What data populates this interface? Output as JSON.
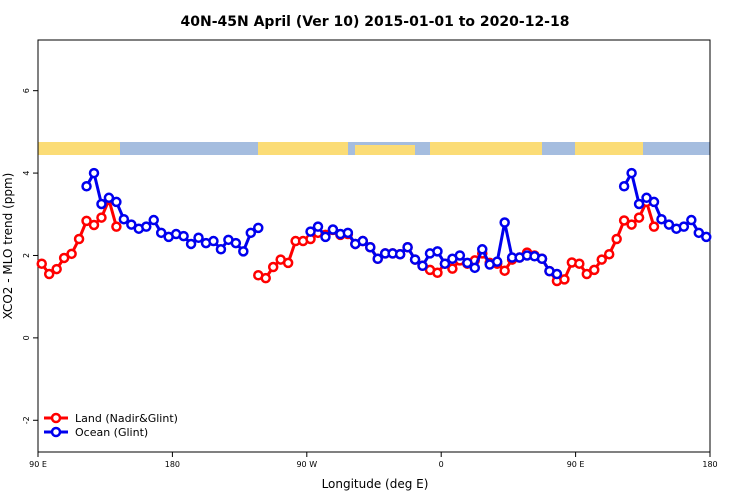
{
  "chart_data": {
    "type": "line",
    "title": "40N-45N April (Ver 10)   2015-01-01 to 2020-12-18",
    "xlabel": "Longitude (deg E)",
    "ylabel": "XCO2 - MLO trend (ppm)",
    "xlim": [
      90,
      540
    ],
    "xticks": [
      {
        "value": 90,
        "label": "90 E"
      },
      {
        "value": 180,
        "label": "180"
      },
      {
        "value": 270,
        "label": "90 W"
      },
      {
        "value": 360,
        "label": "0"
      },
      {
        "value": 450,
        "label": "90 E"
      },
      {
        "value": 540,
        "label": "180"
      }
    ],
    "ylim": [
      -2.77,
      7.23
    ],
    "yticks": [
      -2,
      0,
      2,
      4,
      6
    ],
    "legend": "bottom-left",
    "series": [
      {
        "name": "Land (Nadir&Glint)",
        "color": "#ff0000",
        "x": [
          92.5,
          97.5,
          102.5,
          107.5,
          112.5,
          117.5,
          122.5,
          127.5,
          132.5,
          137.5,
          142.5,
          null,
          237.5,
          242.5,
          247.5,
          252.5,
          257.5,
          262.5,
          267.5,
          272.5,
          277.5,
          282.5,
          287.5,
          292.5,
          297.5,
          302.5,
          307.5,
          312.5,
          317.5,
          322.5,
          327.5,
          332.5,
          337.5,
          342.5,
          347.5,
          352.5,
          357.5,
          362.5,
          367.5,
          372.5,
          377.5,
          382.5,
          387.5,
          392.5,
          397.5,
          402.5,
          407.5,
          412.5,
          417.5,
          422.5,
          427.5,
          432.5,
          437.5,
          442.5,
          447.5,
          452.5,
          457.5,
          462.5,
          467.5,
          472.5,
          477.5,
          482.5,
          487.5,
          492.5,
          497.5,
          502.5
        ],
        "values": [
          1.8,
          1.55,
          1.67,
          1.94,
          2.04,
          2.4,
          2.84,
          2.74,
          2.92,
          3.35,
          2.7,
          null,
          1.52,
          1.45,
          1.72,
          1.9,
          1.82,
          2.35,
          2.35,
          2.4,
          2.55,
          2.5,
          2.62,
          2.5,
          2.52,
          2.28,
          2.35,
          2.2,
          1.92,
          2.05,
          2.05,
          2.03,
          2.2,
          1.9,
          1.75,
          1.65,
          1.58,
          1.8,
          1.68,
          1.88,
          1.8,
          1.88,
          2.05,
          1.82,
          1.8,
          1.63,
          1.9,
          1.95,
          2.07,
          2.0,
          1.92,
          1.62,
          1.38,
          1.42,
          1.83,
          1.8,
          1.55,
          1.65,
          1.9,
          2.03,
          2.4,
          2.85,
          2.75,
          2.92,
          3.3,
          2.7
        ]
      },
      {
        "name": "Ocean (Glint)",
        "color": "#0000ee",
        "x": [
          122.5,
          127.5,
          132.5,
          137.5,
          142.5,
          147.5,
          152.5,
          157.5,
          162.5,
          167.5,
          172.5,
          177.5,
          182.5,
          187.5,
          192.5,
          197.5,
          202.5,
          207.5,
          212.5,
          217.5,
          222.5,
          227.5,
          232.5,
          237.5,
          null,
          272.5,
          277.5,
          282.5,
          287.5,
          292.5,
          297.5,
          302.5,
          307.5,
          312.5,
          317.5,
          322.5,
          327.5,
          332.5,
          337.5,
          342.5,
          347.5,
          352.5,
          357.5,
          362.5,
          367.5,
          372.5,
          377.5,
          382.5,
          387.5,
          392.5,
          397.5,
          402.5,
          407.5,
          412.5,
          417.5,
          422.5,
          427.5,
          432.5,
          437.5,
          null,
          482.5,
          487.5,
          492.5,
          497.5,
          502.5,
          507.5,
          512.5,
          517.5,
          522.5,
          527.5,
          532.5,
          537.5
        ],
        "values": [
          3.68,
          4.0,
          3.25,
          3.4,
          3.3,
          2.88,
          2.75,
          2.65,
          2.7,
          2.86,
          2.55,
          2.45,
          2.52,
          2.47,
          2.28,
          2.43,
          2.3,
          2.35,
          2.15,
          2.38,
          2.3,
          2.1,
          2.55,
          2.67,
          null,
          2.58,
          2.7,
          2.45,
          2.63,
          2.52,
          2.55,
          2.28,
          2.35,
          2.2,
          1.92,
          2.05,
          2.05,
          2.03,
          2.2,
          1.9,
          1.75,
          2.05,
          2.1,
          1.8,
          1.92,
          2.0,
          1.82,
          1.7,
          2.15,
          1.78,
          1.85,
          2.8,
          1.95,
          1.95,
          2.0,
          1.98,
          1.92,
          1.62,
          1.55,
          null,
          3.68,
          4.0,
          3.25,
          3.4,
          3.3,
          2.88,
          2.75,
          2.65,
          2.7,
          2.86,
          2.55,
          2.45
        ]
      }
    ]
  }
}
